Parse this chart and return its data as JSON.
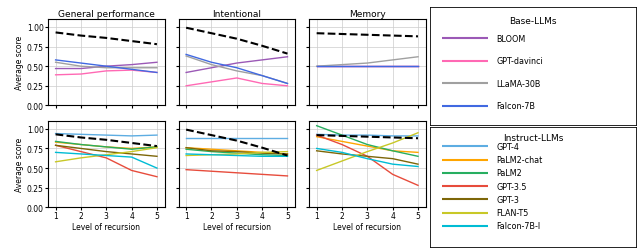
{
  "x": [
    1,
    2,
    3,
    4,
    5
  ],
  "children": {
    "General performance": [
      0.93,
      0.89,
      0.86,
      0.82,
      0.78
    ],
    "Intentional": [
      0.99,
      0.92,
      0.85,
      0.76,
      0.66
    ],
    "Memory": [
      0.92,
      0.91,
      0.9,
      0.89,
      0.88
    ]
  },
  "base_llms": {
    "BLOOM": {
      "color": "#9B59B6",
      "General performance": [
        0.47,
        0.47,
        0.5,
        0.52,
        0.55
      ],
      "Intentional": [
        0.42,
        0.48,
        0.54,
        0.58,
        0.62
      ],
      "Memory": [
        0.5,
        0.5,
        0.5,
        0.5,
        0.5
      ]
    },
    "GPT-davinci": {
      "color": "#FF69B4",
      "General performance": [
        0.39,
        0.4,
        0.44,
        0.45,
        0.42
      ],
      "Intentional": [
        0.25,
        0.3,
        0.35,
        0.28,
        0.25
      ],
      "Memory": [
        0.5,
        0.5,
        0.5,
        0.5,
        0.5
      ]
    },
    "LLaMA-30B": {
      "color": "#A0A0A0",
      "General performance": [
        0.55,
        0.5,
        0.48,
        0.48,
        0.48
      ],
      "Intentional": [
        0.63,
        0.52,
        0.44,
        0.38,
        0.28
      ],
      "Memory": [
        0.5,
        0.52,
        0.54,
        0.58,
        0.62
      ]
    },
    "Falcon-7B": {
      "color": "#4169E1",
      "General performance": [
        0.58,
        0.54,
        0.5,
        0.46,
        0.42
      ],
      "Intentional": [
        0.65,
        0.55,
        0.48,
        0.38,
        0.28
      ],
      "Memory": [
        0.5,
        0.5,
        0.5,
        0.5,
        0.5
      ]
    }
  },
  "instruct_llms": {
    "GPT-4": {
      "color": "#5DADE2",
      "General performance": [
        0.94,
        0.93,
        0.92,
        0.91,
        0.92
      ],
      "Intentional": [
        0.88,
        0.88,
        0.88,
        0.88,
        0.88
      ],
      "Memory": [
        0.93,
        0.92,
        0.92,
        0.91,
        0.91
      ]
    },
    "PaLM2-chat": {
      "color": "#FFA500",
      "General performance": [
        0.83,
        0.8,
        0.77,
        0.75,
        0.77
      ],
      "Intentional": [
        0.76,
        0.74,
        0.72,
        0.7,
        0.68
      ],
      "Memory": [
        0.9,
        0.84,
        0.78,
        0.72,
        0.7
      ]
    },
    "PaLM2": {
      "color": "#27AE60",
      "General performance": [
        0.84,
        0.8,
        0.77,
        0.74,
        0.77
      ],
      "Intentional": [
        0.74,
        0.71,
        0.69,
        0.67,
        0.66
      ],
      "Memory": [
        1.04,
        0.92,
        0.8,
        0.72,
        0.65
      ]
    },
    "GPT-3.5": {
      "color": "#E74C3C",
      "General performance": [
        0.79,
        0.71,
        0.63,
        0.47,
        0.39
      ],
      "Intentional": [
        0.48,
        0.46,
        0.44,
        0.42,
        0.4
      ],
      "Memory": [
        0.92,
        0.8,
        0.65,
        0.42,
        0.28
      ]
    },
    "GPT-3": {
      "color": "#7D6608",
      "General performance": [
        0.79,
        0.75,
        0.71,
        0.68,
        0.65
      ],
      "Intentional": [
        0.76,
        0.72,
        0.71,
        0.69,
        0.68
      ],
      "Memory": [
        0.72,
        0.68,
        0.65,
        0.62,
        0.55
      ]
    },
    "FLAN-T5": {
      "color": "#C8C827",
      "General performance": [
        0.58,
        0.63,
        0.67,
        0.71,
        0.76
      ],
      "Intentional": [
        0.66,
        0.67,
        0.68,
        0.7,
        0.71
      ],
      "Memory": [
        0.47,
        0.59,
        0.71,
        0.82,
        0.95
      ]
    },
    "Falcon-7B-I": {
      "color": "#00BCD4",
      "General performance": [
        0.7,
        0.68,
        0.66,
        0.64,
        0.5
      ],
      "Intentional": [
        0.68,
        0.67,
        0.66,
        0.65,
        0.65
      ],
      "Memory": [
        0.75,
        0.7,
        0.62,
        0.55,
        0.52
      ]
    }
  },
  "subplot_titles": [
    "General performance",
    "Intentional",
    "Memory"
  ],
  "xlabel": "Level of recursion",
  "ylabel": "Average score",
  "xlim": [
    0.7,
    5.3
  ],
  "ylim": [
    0.0,
    1.1
  ],
  "yticks": [
    0.0,
    0.25,
    0.5,
    0.75,
    1.0
  ],
  "xticks": [
    1,
    2,
    3,
    4,
    5
  ],
  "legend_top_title": "Base-LLMs",
  "legend_bot_title": "Instruct-LLMs"
}
